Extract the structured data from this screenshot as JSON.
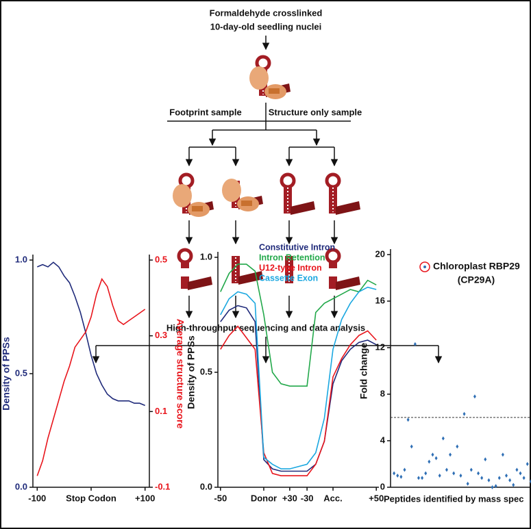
{
  "diagram": {
    "title_lines": [
      "Formaldehyde crosslinked",
      "10-day-old seedling nuclei"
    ],
    "branch_left": "Footprint sample",
    "branch_right": "Structure only sample",
    "analysis": "High-throughput sequencing and data analysis"
  },
  "chart_data": [
    {
      "type": "line",
      "ylabel": "Density of PPSs",
      "y2label": "Average structure score",
      "x": [
        -100,
        -90,
        -80,
        -70,
        -60,
        -50,
        -40,
        -30,
        -20,
        -10,
        0,
        10,
        20,
        30,
        40,
        50,
        60,
        70,
        80,
        90,
        100
      ],
      "xlim": [
        -108,
        108
      ],
      "xticks": [
        -100,
        {
          "value": 0,
          "label": "Stop Codon"
        },
        {
          "value": 100,
          "label": "+100"
        }
      ],
      "ylim": [
        0,
        1.0
      ],
      "yticks": [
        {
          "value": 0,
          "label": "0.0"
        },
        0.5,
        {
          "value": 1,
          "label": "1.0"
        }
      ],
      "y2lim": [
        -0.1,
        0.5
      ],
      "y2ticks": [
        -0.1,
        0.1,
        0.3,
        0.5
      ],
      "series": [
        {
          "name": "Density of PPSs",
          "color": "#1f2a7a",
          "values": [
            0.97,
            0.98,
            0.97,
            0.99,
            0.97,
            0.93,
            0.9,
            0.84,
            0.77,
            0.68,
            0.58,
            0.5,
            0.45,
            0.41,
            0.39,
            0.38,
            0.38,
            0.38,
            0.37,
            0.37,
            0.36
          ]
        },
        {
          "name": "Average structure score",
          "color": "#e8141b",
          "axis": "y2",
          "values": [
            -0.07,
            -0.03,
            0.03,
            0.08,
            0.13,
            0.18,
            0.22,
            0.27,
            0.29,
            0.31,
            0.35,
            0.41,
            0.45,
            0.43,
            0.38,
            0.34,
            0.33,
            0.34,
            0.35,
            0.36,
            0.37
          ]
        }
      ]
    },
    {
      "type": "line",
      "ylabel": "Density of PPSs",
      "x": [
        0,
        10,
        20,
        30,
        40,
        50,
        60,
        70,
        80,
        100,
        110,
        120,
        130,
        140,
        150,
        160,
        170,
        180
      ],
      "xlim": [
        -3,
        183
      ],
      "xticks": [
        {
          "value": 0,
          "label": "-50"
        },
        {
          "value": 50,
          "label": "Donor"
        },
        {
          "value": 80,
          "label": "+30"
        },
        {
          "value": 100,
          "label": "-30"
        },
        {
          "value": 130,
          "label": "Acc."
        },
        {
          "value": 180,
          "label": "+50"
        }
      ],
      "ylim": [
        0,
        1.0
      ],
      "yticks": [
        {
          "value": 0,
          "label": "0.0"
        },
        0.5,
        {
          "value": 1,
          "label": "1.0"
        }
      ],
      "series": [
        {
          "name": "Constitutive Intron",
          "color": "#1f2a7a",
          "values": [
            0.72,
            0.77,
            0.79,
            0.78,
            0.72,
            0.12,
            0.08,
            0.07,
            0.07,
            0.07,
            0.1,
            0.2,
            0.45,
            0.55,
            0.6,
            0.63,
            0.64,
            0.62
          ]
        },
        {
          "name": "Intron Retention",
          "color": "#22a84a",
          "values": [
            0.85,
            0.93,
            0.97,
            0.97,
            0.94,
            0.75,
            0.5,
            0.45,
            0.44,
            0.44,
            0.76,
            0.8,
            0.82,
            0.84,
            0.86,
            0.85,
            0.9,
            0.88
          ]
        },
        {
          "name": "U12-type Intron",
          "color": "#e8141b",
          "values": [
            0.6,
            0.66,
            0.7,
            0.65,
            0.6,
            0.15,
            0.06,
            0.05,
            0.05,
            0.05,
            0.1,
            0.2,
            0.48,
            0.56,
            0.62,
            0.66,
            0.68,
            0.64
          ]
        },
        {
          "name": "Cassette Exon",
          "color": "#1aa7e0",
          "values": [
            0.75,
            0.82,
            0.85,
            0.84,
            0.8,
            0.13,
            0.1,
            0.08,
            0.08,
            0.1,
            0.15,
            0.3,
            0.6,
            0.73,
            0.8,
            0.85,
            0.87,
            0.86
          ]
        }
      ]
    },
    {
      "type": "scatter",
      "ylabel": "Fold change",
      "xlabel": "Peptides identified by mass spec",
      "annotation": "(CP29A)",
      "x": [
        1,
        2,
        3,
        4,
        5,
        6,
        7,
        8,
        9,
        10,
        11,
        12,
        13,
        14,
        15,
        16,
        17,
        18,
        19,
        20,
        21,
        22,
        23,
        24,
        25,
        26,
        27,
        28,
        29,
        30,
        31,
        32,
        33,
        34,
        35,
        36,
        37,
        38,
        39,
        40
      ],
      "xlim": [
        0,
        41
      ],
      "ylim": [
        0,
        20
      ],
      "yticks": [
        0,
        4,
        8,
        12,
        16,
        20
      ],
      "threshold": 6,
      "series": [
        {
          "name": "Chloroplast RBP29",
          "color": "#2f6fb5",
          "values": [
            1.2,
            1.0,
            0.9,
            1.5,
            5.8,
            3.5,
            12.3,
            0.8,
            0.8,
            1.2,
            2.2,
            2.8,
            2.5,
            1.0,
            4.2,
            1.5,
            2.8,
            1.2,
            3.5,
            1.0,
            6.3,
            0.3,
            1.5,
            7.8,
            1.2,
            0.8,
            2.4,
            0.6,
            0.0,
            0.1,
            0.8,
            2.8,
            1.0,
            0.6,
            0.2,
            1.5,
            1.2,
            0.8,
            2.0,
            0.5
          ]
        }
      ]
    }
  ]
}
